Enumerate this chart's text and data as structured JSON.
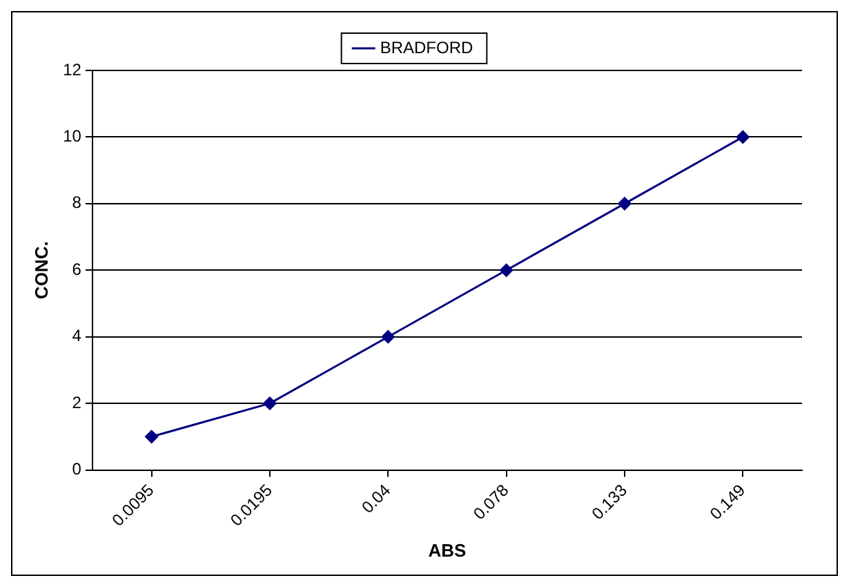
{
  "chart_data": {
    "type": "line",
    "xlabel": "ABS",
    "ylabel": "CONC.",
    "categories": [
      "0.0095",
      "0.0195",
      "0.04",
      "0.078",
      "0.133",
      "0.149"
    ],
    "series": [
      {
        "name": "BRADFORD",
        "color": "#000080",
        "values": [
          1,
          2,
          4,
          6,
          8,
          10
        ]
      }
    ],
    "ylim": [
      0,
      12
    ],
    "yticks": [
      0,
      2,
      4,
      6,
      8,
      10,
      12
    ],
    "grid": "y",
    "legend": "top",
    "marker": "diamond",
    "line_style": "solid"
  }
}
